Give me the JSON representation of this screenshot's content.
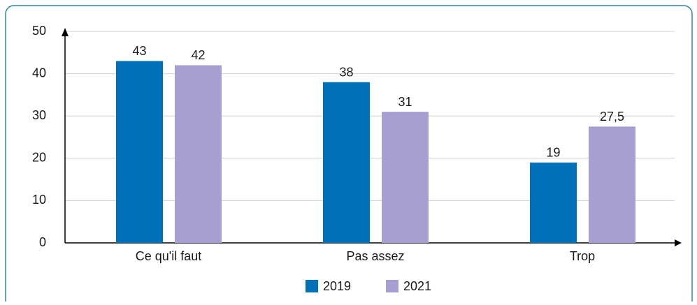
{
  "chart_data": {
    "type": "bar",
    "categories": [
      "Ce qu'il faut",
      "Pas assez",
      "Trop"
    ],
    "series": [
      {
        "name": "2019",
        "color": "#0070b8",
        "values": [
          43,
          38,
          19
        ]
      },
      {
        "name": "2021",
        "color": "#a79fd1",
        "values": [
          42,
          31,
          27.5
        ],
        "value_labels": [
          "42",
          "31",
          "27,5"
        ]
      }
    ],
    "ylim": [
      0,
      50
    ],
    "yticks": [
      0,
      10,
      20,
      30,
      40,
      50
    ],
    "grid": true,
    "legend": "bottom"
  }
}
